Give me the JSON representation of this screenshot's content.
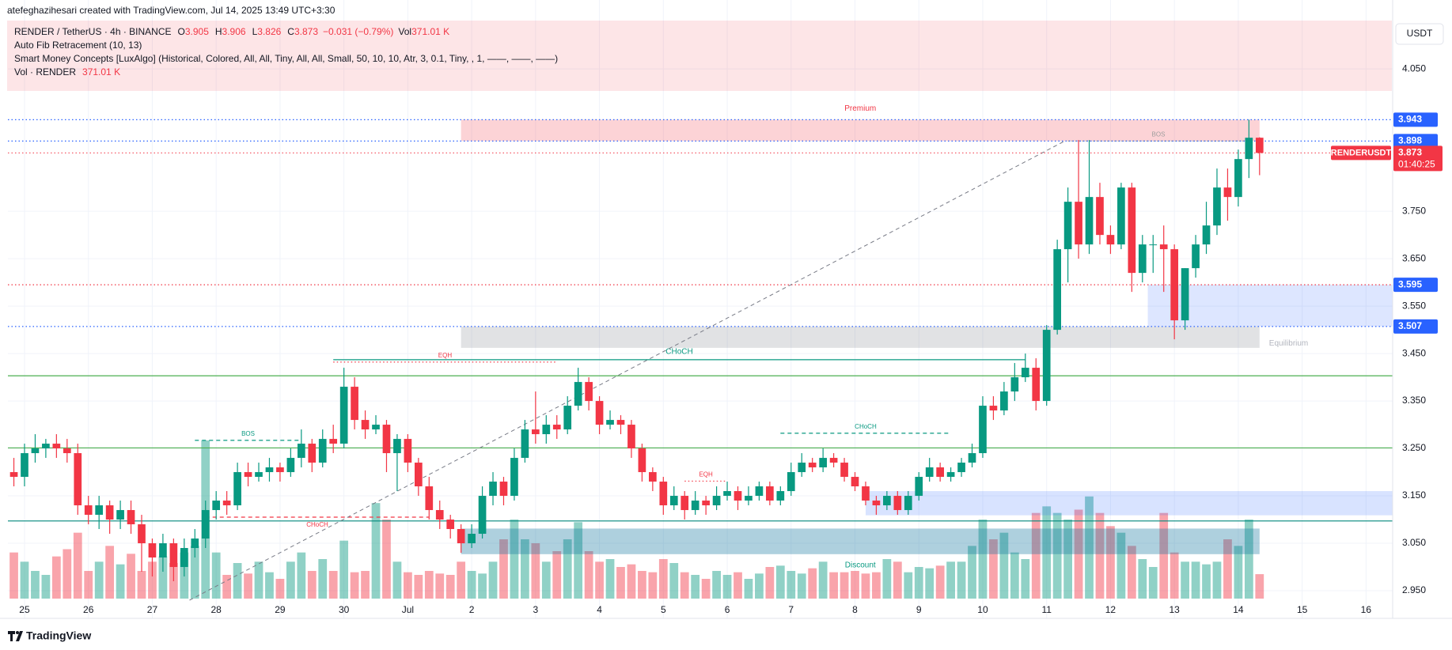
{
  "watermark": "atefeghazihesari created with TradingView.com, Jul 14, 2025 13:49 UTC+3:30",
  "currency": "USDT",
  "brand": "TradingView",
  "legend": {
    "symbol": "RENDER / TetherUS · 4h · BINANCE",
    "ohlc": [
      {
        "label": "O",
        "value": 3.905
      },
      {
        "label": "H",
        "value": 3.906
      },
      {
        "label": "L",
        "value": 3.826
      },
      {
        "label": "C",
        "value": 3.873
      }
    ],
    "change": "−0.031 (−0.79%)",
    "volume_label": "Vol",
    "volume": "371.01 K",
    "indicators": [
      "Auto Fib Retracement (10, 13)",
      "Smart Money Concepts [LuxAlgo] (Historical, Colored, All, All, Tiny, All, All, Small, 50, 10, 10, Atr, 3, 0.1, Tiny, , 1, ——, ——, ——)"
    ],
    "volume_indicator": {
      "name": "Vol · RENDER",
      "value": "371.01 K"
    }
  },
  "chart_data": {
    "type": "candlestick",
    "up_color": "#089981",
    "down_color": "#f23645",
    "grid": true,
    "xlim": [
      -0.56,
      129.5
    ],
    "xticks": [
      {
        "value": 1,
        "label": "25"
      },
      {
        "value": 7,
        "label": "26"
      },
      {
        "value": 13,
        "label": "27"
      },
      {
        "value": 19,
        "label": "28"
      },
      {
        "value": 25,
        "label": "29"
      },
      {
        "value": 31,
        "label": "30"
      },
      {
        "value": 37,
        "label": "Jul"
      },
      {
        "value": 43,
        "label": "2"
      },
      {
        "value": 49,
        "label": "3"
      },
      {
        "value": 55,
        "label": "4"
      },
      {
        "value": 61,
        "label": "5"
      },
      {
        "value": 67,
        "label": "6"
      },
      {
        "value": 73,
        "label": "7"
      },
      {
        "value": 79,
        "label": "8"
      },
      {
        "value": 85,
        "label": "9"
      },
      {
        "value": 91,
        "label": "10"
      },
      {
        "value": 97,
        "label": "11"
      },
      {
        "value": 103,
        "label": "12"
      },
      {
        "value": 109,
        "label": "13"
      },
      {
        "value": 115,
        "label": "14"
      },
      {
        "value": 121,
        "label": "15"
      },
      {
        "value": 127,
        "label": "16"
      }
    ],
    "ylim": [
      2.925,
      4.152
    ],
    "yticks": [
      {
        "value": 2.95,
        "label": "2.950"
      },
      {
        "value": 3.05,
        "label": "3.050"
      },
      {
        "value": 3.15,
        "label": "3.150"
      },
      {
        "value": 3.25,
        "label": "3.250"
      },
      {
        "value": 3.35,
        "label": "3.350"
      },
      {
        "value": 3.45,
        "label": "3.450"
      },
      {
        "value": 3.55,
        "label": "3.550"
      },
      {
        "value": 3.65,
        "label": "3.650"
      },
      {
        "value": 3.75,
        "label": "3.750"
      },
      {
        "value": 4.05,
        "label": "4.050"
      }
    ],
    "open": [
      3.2,
      3.19,
      3.24,
      3.25,
      3.26,
      3.25,
      3.24,
      3.13,
      3.11,
      3.13,
      3.1,
      3.12,
      3.09,
      3.05,
      3.02,
      3.05,
      3.0,
      3.04,
      3.06,
      3.12,
      3.14,
      3.13,
      3.2,
      3.19,
      3.2,
      3.21,
      3.2,
      3.23,
      3.26,
      3.22,
      3.27,
      3.26,
      3.38,
      3.31,
      3.29,
      3.3,
      3.24,
      3.27,
      3.22,
      3.17,
      3.12,
      3.1,
      3.08,
      3.05,
      3.07,
      3.15,
      3.18,
      3.15,
      3.23,
      3.29,
      3.28,
      3.3,
      3.29,
      3.34,
      3.39,
      3.35,
      3.3,
      3.31,
      3.3,
      3.25,
      3.2,
      3.18,
      3.13,
      3.15,
      3.12,
      3.14,
      3.13,
      3.15,
      3.16,
      3.14,
      3.15,
      3.17,
      3.14,
      3.16,
      3.2,
      3.22,
      3.21,
      3.23,
      3.22,
      3.19,
      3.17,
      3.14,
      3.13,
      3.15,
      3.12,
      3.15,
      3.19,
      3.21,
      3.19,
      3.2,
      3.22,
      3.24,
      3.34,
      3.33,
      3.37,
      3.4,
      3.42,
      3.35,
      3.5,
      3.67,
      3.77,
      3.68,
      3.78,
      3.7,
      3.68,
      3.8,
      3.62,
      3.68,
      3.68,
      3.67,
      3.52,
      3.63,
      3.68,
      3.72,
      3.8,
      3.78,
      3.86,
      3.905
    ],
    "high": [
      3.23,
      3.26,
      3.28,
      3.27,
      3.28,
      3.27,
      3.26,
      3.15,
      3.15,
      3.14,
      3.14,
      3.14,
      3.11,
      3.06,
      3.07,
      3.06,
      3.06,
      3.08,
      3.14,
      3.16,
      3.16,
      3.22,
      3.22,
      3.22,
      3.23,
      3.22,
      3.25,
      3.29,
      3.27,
      3.29,
      3.3,
      3.42,
      3.4,
      3.33,
      3.32,
      3.31,
      3.28,
      3.28,
      3.23,
      3.19,
      3.14,
      3.11,
      3.09,
      3.09,
      3.17,
      3.2,
      3.19,
      3.25,
      3.31,
      3.37,
      3.32,
      3.32,
      3.36,
      3.42,
      3.4,
      3.36,
      3.33,
      3.32,
      3.31,
      3.26,
      3.21,
      3.19,
      3.17,
      3.16,
      3.16,
      3.15,
      3.17,
      3.18,
      3.17,
      3.17,
      3.18,
      3.18,
      3.17,
      3.22,
      3.24,
      3.23,
      3.25,
      3.24,
      3.23,
      3.2,
      3.18,
      3.15,
      3.16,
      3.16,
      3.16,
      3.2,
      3.23,
      3.22,
      3.21,
      3.23,
      3.26,
      3.36,
      3.36,
      3.39,
      3.43,
      3.45,
      3.44,
      3.51,
      3.69,
      3.8,
      3.9,
      3.9,
      3.81,
      3.72,
      3.81,
      3.81,
      3.7,
      3.7,
      3.72,
      3.68,
      3.63,
      3.7,
      3.77,
      3.84,
      3.84,
      3.88,
      3.943,
      3.906
    ],
    "low": [
      3.17,
      3.17,
      3.22,
      3.23,
      3.23,
      3.22,
      3.11,
      3.09,
      3.08,
      3.07,
      3.08,
      3.07,
      2.99,
      2.98,
      2.99,
      2.97,
      2.98,
      3.02,
      3.04,
      3.1,
      3.11,
      3.12,
      3.17,
      3.18,
      3.18,
      3.18,
      3.19,
      3.21,
      3.2,
      3.21,
      3.24,
      3.25,
      3.29,
      3.27,
      3.28,
      3.2,
      3.16,
      3.2,
      3.15,
      3.1,
      3.08,
      3.06,
      3.03,
      3.04,
      3.06,
      3.13,
      3.13,
      3.14,
      3.22,
      3.26,
      3.26,
      3.27,
      3.28,
      3.33,
      3.33,
      3.28,
      3.29,
      3.28,
      3.23,
      3.18,
      3.16,
      3.11,
      3.12,
      3.1,
      3.11,
      3.11,
      3.12,
      3.14,
      3.12,
      3.13,
      3.14,
      3.13,
      3.13,
      3.15,
      3.19,
      3.2,
      3.2,
      3.21,
      3.18,
      3.16,
      3.13,
      3.11,
      3.12,
      3.11,
      3.11,
      3.14,
      3.18,
      3.18,
      3.18,
      3.19,
      3.21,
      3.23,
      3.31,
      3.32,
      3.35,
      3.39,
      3.33,
      3.34,
      3.49,
      3.6,
      3.65,
      3.66,
      3.68,
      3.66,
      3.67,
      3.58,
      3.6,
      3.62,
      3.58,
      3.48,
      3.5,
      3.61,
      3.66,
      3.7,
      3.73,
      3.76,
      3.82,
      3.826
    ],
    "close": [
      3.19,
      3.24,
      3.25,
      3.26,
      3.25,
      3.24,
      3.13,
      3.11,
      3.13,
      3.1,
      3.12,
      3.09,
      3.05,
      3.02,
      3.05,
      3.0,
      3.04,
      3.06,
      3.12,
      3.14,
      3.13,
      3.2,
      3.19,
      3.2,
      3.21,
      3.2,
      3.23,
      3.26,
      3.22,
      3.27,
      3.26,
      3.38,
      3.31,
      3.29,
      3.3,
      3.24,
      3.27,
      3.22,
      3.17,
      3.12,
      3.1,
      3.08,
      3.05,
      3.07,
      3.15,
      3.18,
      3.15,
      3.23,
      3.29,
      3.28,
      3.3,
      3.29,
      3.34,
      3.39,
      3.35,
      3.3,
      3.31,
      3.3,
      3.25,
      3.2,
      3.18,
      3.13,
      3.15,
      3.12,
      3.14,
      3.13,
      3.15,
      3.16,
      3.14,
      3.15,
      3.17,
      3.14,
      3.16,
      3.2,
      3.22,
      3.21,
      3.23,
      3.22,
      3.19,
      3.17,
      3.14,
      3.13,
      3.15,
      3.12,
      3.15,
      3.19,
      3.21,
      3.19,
      3.2,
      3.22,
      3.24,
      3.34,
      3.33,
      3.37,
      3.4,
      3.42,
      3.35,
      3.5,
      3.67,
      3.77,
      3.68,
      3.78,
      3.7,
      3.68,
      3.8,
      3.62,
      3.68,
      3.68,
      3.67,
      3.52,
      3.63,
      3.68,
      3.72,
      3.8,
      3.78,
      3.86,
      3.905,
      3.873
    ],
    "volume": [
      700,
      560,
      420,
      360,
      640,
      750,
      1000,
      420,
      560,
      800,
      520,
      680,
      420,
      560,
      640,
      540,
      700,
      800,
      2400,
      700,
      360,
      540,
      380,
      560,
      400,
      300,
      560,
      700,
      420,
      600,
      420,
      880,
      400,
      420,
      1450,
      1200,
      560,
      400,
      360,
      420,
      380,
      360,
      560,
      420,
      380,
      560,
      900,
      1200,
      900,
      840,
      560,
      720,
      900,
      1160,
      720,
      560,
      600,
      480,
      520,
      420,
      400,
      600,
      540,
      400,
      360,
      300,
      420,
      360,
      400,
      300,
      380,
      480,
      500,
      420,
      380,
      460,
      560,
      400,
      400,
      420,
      380,
      400,
      600,
      560,
      400,
      480,
      460,
      500,
      560,
      560,
      800,
      1200,
      900,
      1000,
      700,
      600,
      1300,
      1400,
      1300,
      1200,
      1350,
      1550,
      1300,
      1100,
      1000,
      800,
      600,
      480,
      1300,
      700,
      560,
      560,
      520,
      560,
      900,
      800,
      1200,
      371.01
    ],
    "zones": [
      {
        "label": "Premium",
        "top": 3.943,
        "bottom": 3.898,
        "from": 42,
        "to": 117,
        "color": "rgba(242,54,69,0.22)",
        "label_at": "top",
        "label_color": "#f23645"
      },
      {
        "label": "Equilibrium",
        "top": 3.507,
        "bottom": 3.462,
        "from": 42,
        "to": 117,
        "color": "rgba(120,123,134,0.22)",
        "label_at": "right",
        "label_color": "#b2b5be"
      },
      {
        "label": "Discount",
        "top": 3.081,
        "bottom": 3.027,
        "from": 42,
        "to": 117,
        "color": "rgba(24,120,160,0.35)",
        "label_at": "bottom",
        "label_color": "#089981"
      },
      {
        "top": 3.595,
        "bottom": 3.507,
        "from": 106.5,
        "to": 129.5,
        "color": "rgba(41,98,255,0.16)"
      },
      {
        "top": 3.16,
        "bottom": 3.109,
        "from": 80,
        "to": 129.5,
        "color": "rgba(41,98,255,0.18)"
      }
    ],
    "levels": [
      {
        "value": 3.943,
        "label": "3.943",
        "color": "#2962ff",
        "style": "dotted"
      },
      {
        "value": 3.898,
        "label": "3.898",
        "color": "#2962ff",
        "style": "dotted"
      },
      {
        "value": 3.595,
        "label": "3.595",
        "color": "#f23645",
        "style": "dotted",
        "tag_color": "#2962ff"
      },
      {
        "value": 3.507,
        "label": "3.507",
        "color": "#2962ff",
        "style": "dotted"
      },
      {
        "value": 3.403,
        "color": "#4caf50",
        "style": "solid"
      },
      {
        "value": 3.251,
        "color": "#4caf50",
        "style": "solid"
      },
      {
        "value": 3.097,
        "color": "#00897b",
        "style": "solid"
      }
    ],
    "structures": [
      {
        "label": "CHoCH",
        "value": 3.437,
        "from": 30,
        "to": 95,
        "color": "#089981",
        "style": "solid",
        "label_side": "above",
        "size": "normal"
      },
      {
        "label": "EQH",
        "value": 3.432,
        "from": 30,
        "to": 51,
        "color": "#f23645",
        "style": "dotted",
        "label_side": "above",
        "size": "small"
      },
      {
        "label": "BOS",
        "value": 3.267,
        "from": 17,
        "to": 27,
        "color": "#089981",
        "style": "dashed",
        "label_side": "above",
        "size": "small"
      },
      {
        "label": "CHoCH",
        "value": 3.105,
        "from": 18,
        "to": 39,
        "color": "#f23645",
        "style": "dashed",
        "label_side": "below",
        "size": "small"
      },
      {
        "label": "EQH",
        "value": 3.181,
        "from": 63,
        "to": 67,
        "color": "#f23645",
        "style": "dotted",
        "label_side": "above",
        "size": "small"
      },
      {
        "label": "CHoCH",
        "value": 3.282,
        "from": 72,
        "to": 88,
        "color": "#089981",
        "style": "dashed",
        "label_side": "above",
        "size": "small"
      },
      {
        "label": "BOS",
        "value": 3.898,
        "from": 99,
        "to": 116,
        "color": "#9e9e9e",
        "style": "dotted",
        "label_side": "above",
        "size": "small"
      }
    ],
    "trendline": {
      "x": [
        16.5,
        98.7
      ],
      "y": [
        2.93,
        3.898
      ],
      "color": "#787b86"
    },
    "last_price": {
      "symbol": "RENDERUSDT",
      "value": 3.873,
      "countdown": "01:40:25"
    }
  }
}
